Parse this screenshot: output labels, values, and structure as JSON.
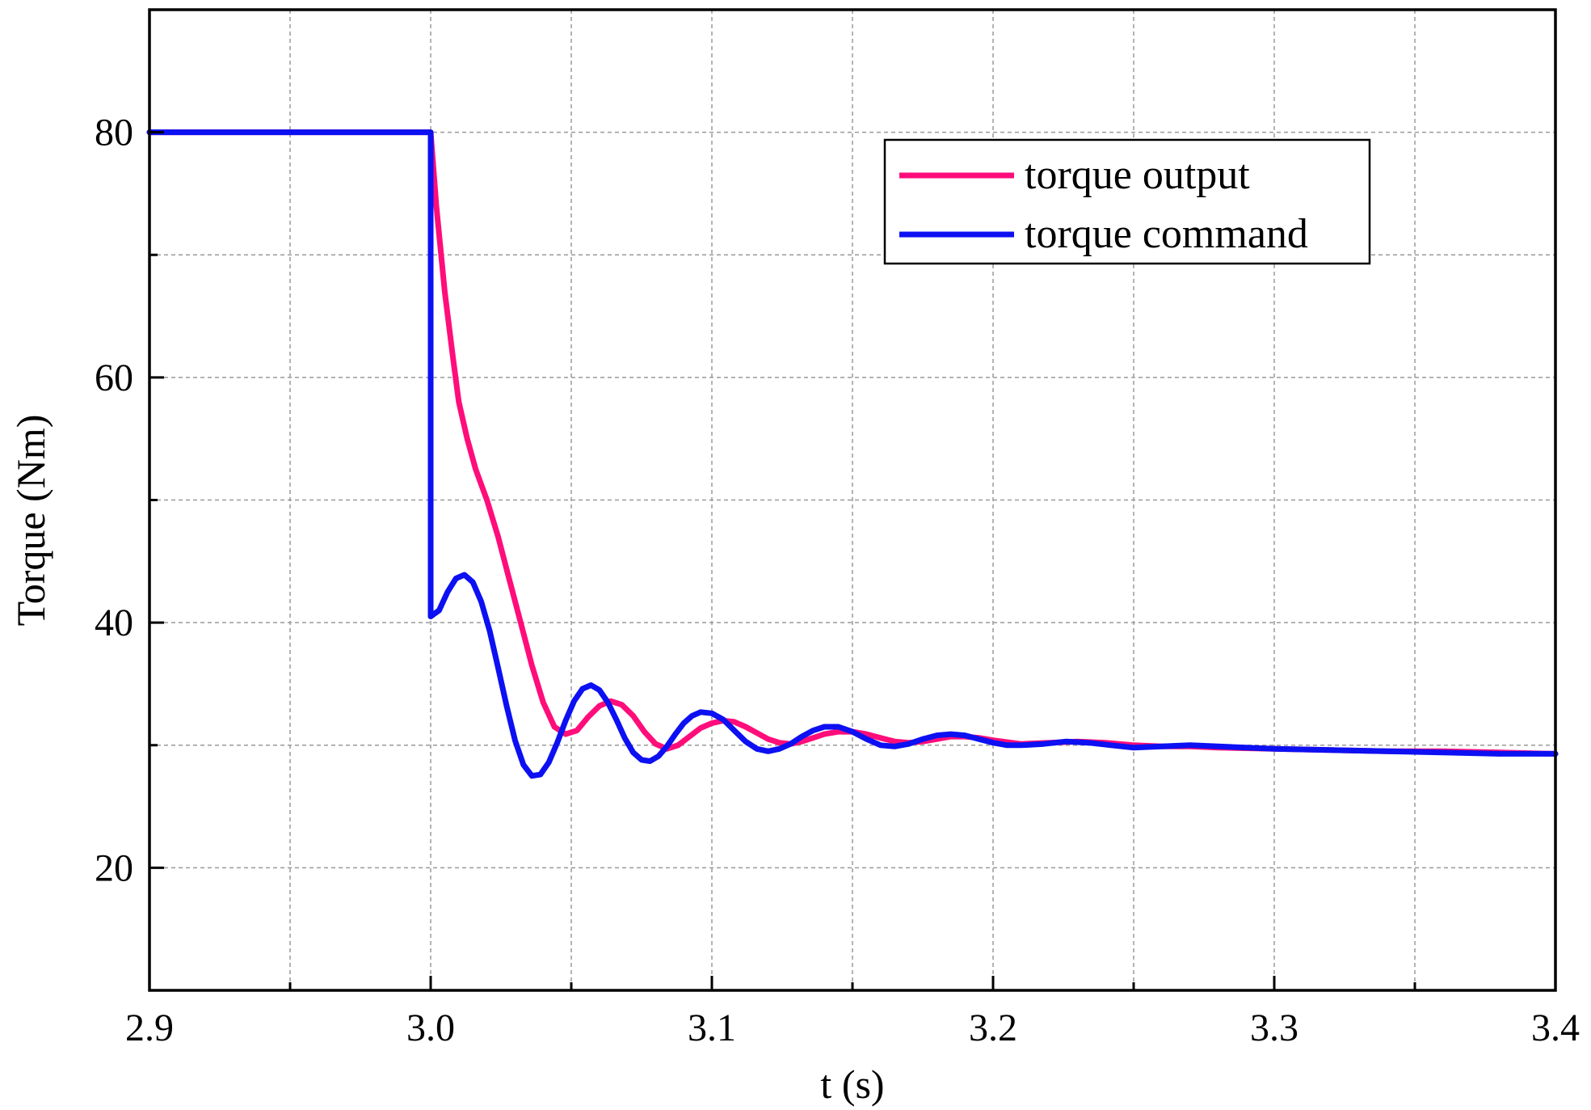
{
  "chart_data": {
    "type": "line",
    "title": "",
    "xlabel": "t (s)",
    "ylabel": "Torque (Nm)",
    "xlim": [
      2.9,
      3.4
    ],
    "ylim": [
      10,
      90
    ],
    "xticks": [
      2.9,
      3.0,
      3.1,
      3.2,
      3.3,
      3.4
    ],
    "xtick_labels": [
      "2.9",
      "3.0",
      "3.1",
      "3.2",
      "3.3",
      "3.4"
    ],
    "xminor": [
      2.95,
      3.05,
      3.15,
      3.25,
      3.35
    ],
    "yticks": [
      20,
      40,
      60,
      80
    ],
    "ytick_labels": [
      "20",
      "40",
      "60",
      "80"
    ],
    "yminor": [
      30,
      50,
      70
    ],
    "grid": true,
    "legend_position": "top-right",
    "series": [
      {
        "name": "torque output",
        "color": "#ff0d7a",
        "points": [
          [
            2.9,
            80
          ],
          [
            3.0,
            80
          ],
          [
            3.002,
            74
          ],
          [
            3.005,
            67
          ],
          [
            3.008,
            61.5
          ],
          [
            3.01,
            58
          ],
          [
            3.013,
            55
          ],
          [
            3.016,
            52.5
          ],
          [
            3.02,
            50
          ],
          [
            3.024,
            47
          ],
          [
            3.028,
            43.5
          ],
          [
            3.032,
            40
          ],
          [
            3.036,
            36.5
          ],
          [
            3.04,
            33.5
          ],
          [
            3.044,
            31.5
          ],
          [
            3.048,
            30.9
          ],
          [
            3.052,
            31.2
          ],
          [
            3.056,
            32.3
          ],
          [
            3.06,
            33.2
          ],
          [
            3.064,
            33.6
          ],
          [
            3.068,
            33.3
          ],
          [
            3.072,
            32.4
          ],
          [
            3.076,
            31.1
          ],
          [
            3.08,
            30.1
          ],
          [
            3.084,
            29.7
          ],
          [
            3.088,
            30.0
          ],
          [
            3.092,
            30.7
          ],
          [
            3.096,
            31.4
          ],
          [
            3.1,
            31.8
          ],
          [
            3.104,
            32.0
          ],
          [
            3.108,
            31.9
          ],
          [
            3.112,
            31.5
          ],
          [
            3.116,
            31.0
          ],
          [
            3.12,
            30.5
          ],
          [
            3.124,
            30.2
          ],
          [
            3.128,
            30.1
          ],
          [
            3.132,
            30.3
          ],
          [
            3.136,
            30.6
          ],
          [
            3.14,
            30.9
          ],
          [
            3.145,
            31.1
          ],
          [
            3.15,
            31.1
          ],
          [
            3.155,
            30.9
          ],
          [
            3.16,
            30.6
          ],
          [
            3.165,
            30.3
          ],
          [
            3.17,
            30.2
          ],
          [
            3.175,
            30.3
          ],
          [
            3.18,
            30.5
          ],
          [
            3.185,
            30.7
          ],
          [
            3.19,
            30.7
          ],
          [
            3.195,
            30.6
          ],
          [
            3.2,
            30.4
          ],
          [
            3.21,
            30.1
          ],
          [
            3.22,
            30.2
          ],
          [
            3.23,
            30.3
          ],
          [
            3.24,
            30.2
          ],
          [
            3.25,
            30.0
          ],
          [
            3.26,
            29.9
          ],
          [
            3.27,
            29.9
          ],
          [
            3.28,
            29.8
          ],
          [
            3.3,
            29.7
          ],
          [
            3.32,
            29.6
          ],
          [
            3.34,
            29.5
          ],
          [
            3.36,
            29.5
          ],
          [
            3.38,
            29.4
          ],
          [
            3.4,
            29.3
          ]
        ]
      },
      {
        "name": "torque command",
        "color": "#0c10f2",
        "points": [
          [
            2.9,
            80
          ],
          [
            3.0,
            80
          ],
          [
            3.0,
            40.5
          ],
          [
            3.003,
            41.0
          ],
          [
            3.006,
            42.5
          ],
          [
            3.009,
            43.6
          ],
          [
            3.012,
            43.9
          ],
          [
            3.015,
            43.3
          ],
          [
            3.018,
            41.7
          ],
          [
            3.021,
            39.3
          ],
          [
            3.024,
            36.3
          ],
          [
            3.027,
            33.2
          ],
          [
            3.03,
            30.4
          ],
          [
            3.033,
            28.4
          ],
          [
            3.036,
            27.5
          ],
          [
            3.039,
            27.6
          ],
          [
            3.042,
            28.6
          ],
          [
            3.045,
            30.2
          ],
          [
            3.048,
            32.0
          ],
          [
            3.051,
            33.6
          ],
          [
            3.054,
            34.6
          ],
          [
            3.057,
            34.9
          ],
          [
            3.06,
            34.5
          ],
          [
            3.063,
            33.5
          ],
          [
            3.066,
            32.1
          ],
          [
            3.069,
            30.6
          ],
          [
            3.072,
            29.4
          ],
          [
            3.075,
            28.8
          ],
          [
            3.078,
            28.7
          ],
          [
            3.081,
            29.1
          ],
          [
            3.084,
            29.9
          ],
          [
            3.087,
            30.9
          ],
          [
            3.09,
            31.8
          ],
          [
            3.093,
            32.4
          ],
          [
            3.096,
            32.7
          ],
          [
            3.1,
            32.6
          ],
          [
            3.104,
            32.1
          ],
          [
            3.108,
            31.2
          ],
          [
            3.112,
            30.3
          ],
          [
            3.116,
            29.7
          ],
          [
            3.12,
            29.5
          ],
          [
            3.124,
            29.7
          ],
          [
            3.128,
            30.1
          ],
          [
            3.132,
            30.7
          ],
          [
            3.136,
            31.2
          ],
          [
            3.14,
            31.5
          ],
          [
            3.145,
            31.5
          ],
          [
            3.15,
            31.1
          ],
          [
            3.155,
            30.5
          ],
          [
            3.16,
            30.0
          ],
          [
            3.165,
            29.9
          ],
          [
            3.17,
            30.1
          ],
          [
            3.175,
            30.5
          ],
          [
            3.18,
            30.8
          ],
          [
            3.185,
            30.9
          ],
          [
            3.19,
            30.8
          ],
          [
            3.195,
            30.5
          ],
          [
            3.2,
            30.2
          ],
          [
            3.205,
            30.0
          ],
          [
            3.21,
            30.0
          ],
          [
            3.218,
            30.1
          ],
          [
            3.226,
            30.3
          ],
          [
            3.234,
            30.2
          ],
          [
            3.242,
            30.0
          ],
          [
            3.25,
            29.8
          ],
          [
            3.26,
            29.9
          ],
          [
            3.27,
            30.0
          ],
          [
            3.28,
            29.9
          ],
          [
            3.29,
            29.8
          ],
          [
            3.3,
            29.7
          ],
          [
            3.32,
            29.6
          ],
          [
            3.34,
            29.5
          ],
          [
            3.36,
            29.4
          ],
          [
            3.38,
            29.3
          ],
          [
            3.4,
            29.3
          ]
        ]
      }
    ]
  }
}
